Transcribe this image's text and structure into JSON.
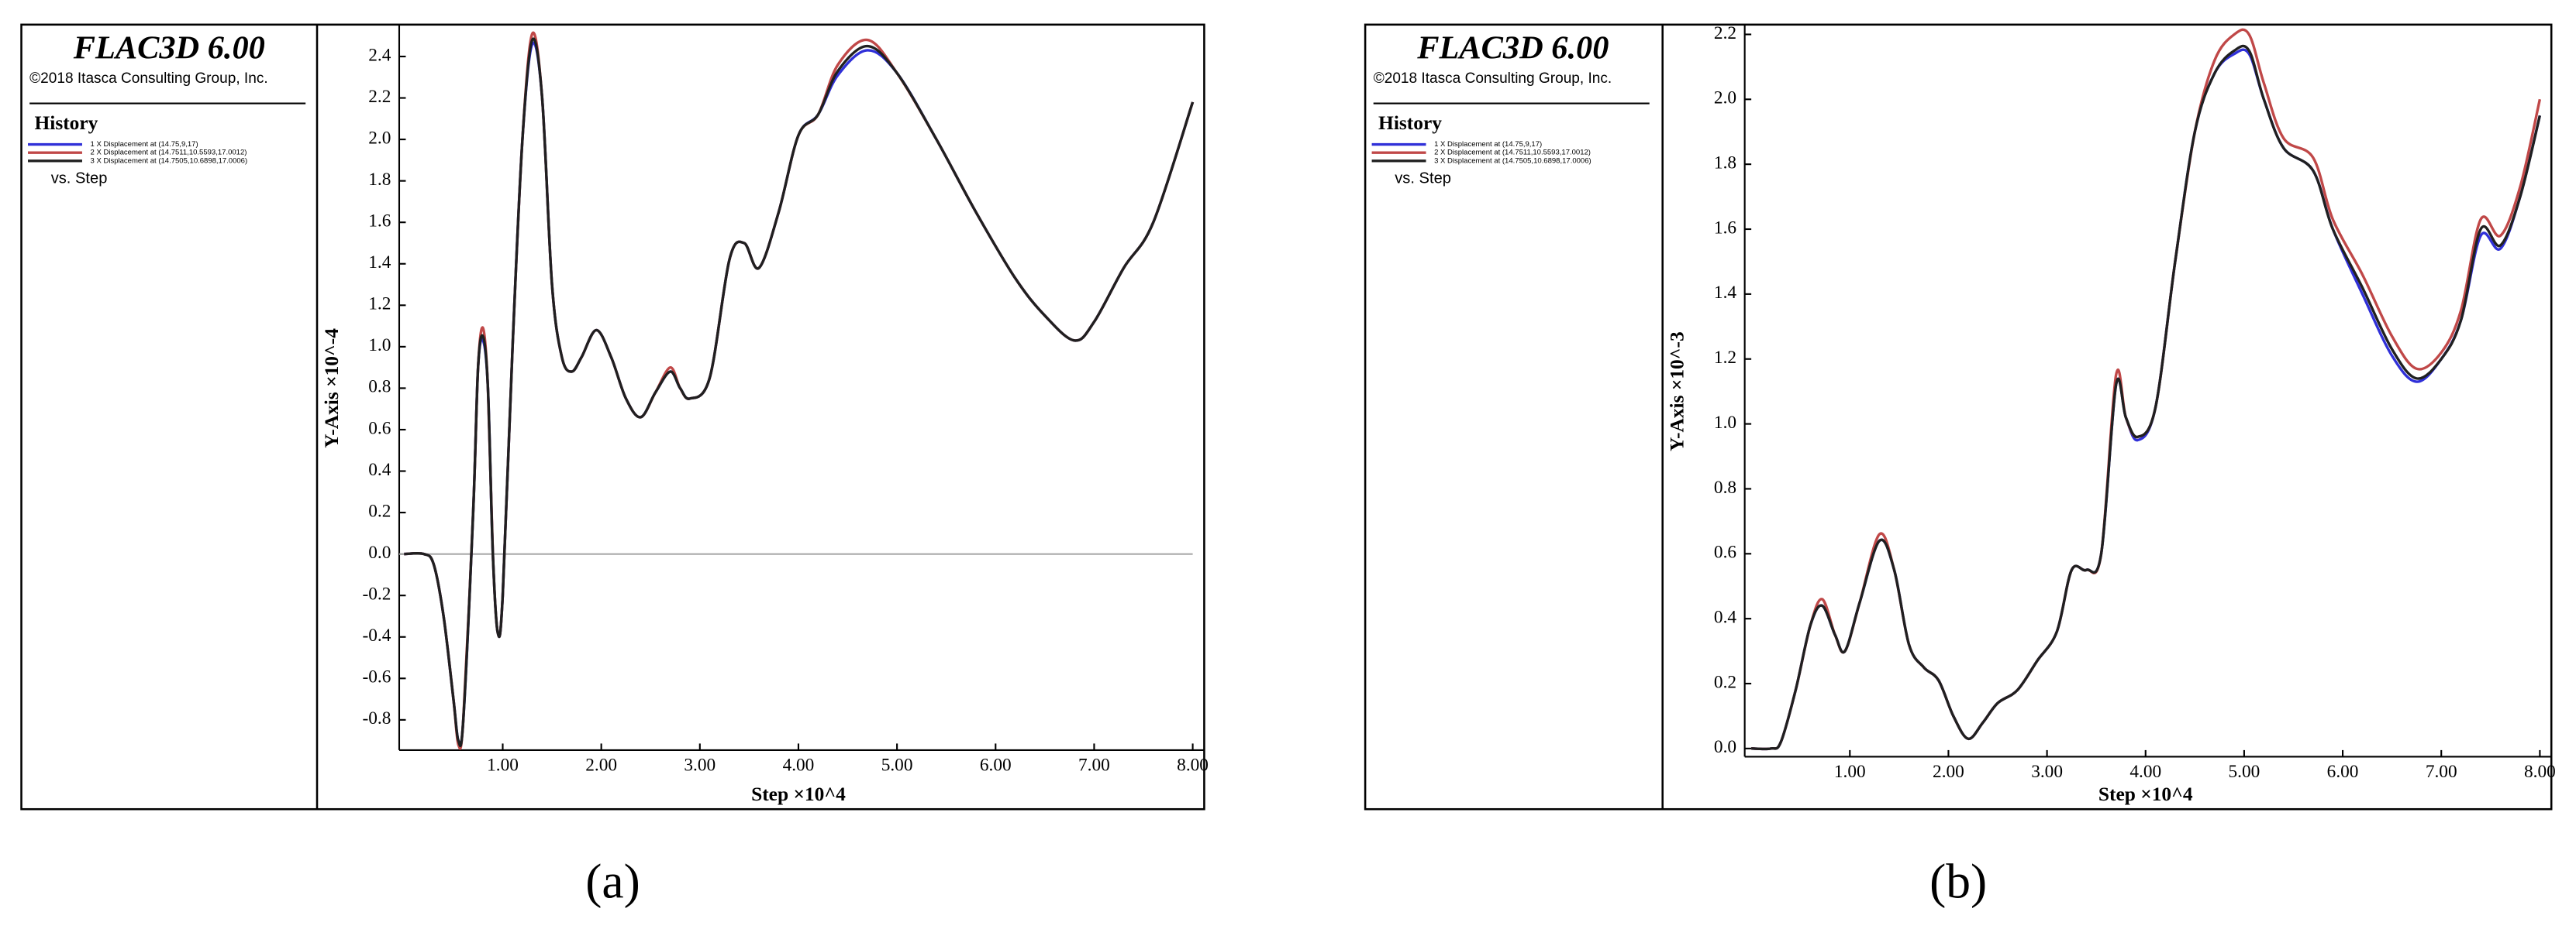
{
  "chart_data": [
    {
      "type": "line",
      "software": "FLAC3D 6.00",
      "copyright": "©2018 Itasca Consulting Group, Inc.",
      "legend_title": "History",
      "x_caption": "vs. Step",
      "panel_label": "(a)",
      "xlabel": "Step ×10^4",
      "ylabel": "Y-Axis ×10^-4",
      "zero_line": true,
      "grid": false,
      "xlim": [
        0,
        8
      ],
      "ylim": [
        -0.93,
        2.53
      ],
      "xticks": [
        {
          "value": 1,
          "label": "1.00"
        },
        {
          "value": 2,
          "label": "2.00"
        },
        {
          "value": 3,
          "label": "3.00"
        },
        {
          "value": 4,
          "label": "4.00"
        },
        {
          "value": 5,
          "label": "5.00"
        },
        {
          "value": 6,
          "label": "6.00"
        },
        {
          "value": 7,
          "label": "7.00"
        },
        {
          "value": 8,
          "label": "8.00"
        }
      ],
      "yticks": [
        -0.8,
        -0.6,
        -0.4,
        -0.2,
        {
          "value": 0,
          "label": "0.0"
        },
        0.2,
        0.4,
        0.6,
        0.8,
        {
          "value": 1,
          "label": "1.0"
        },
        1.2,
        1.4,
        1.6,
        1.8,
        {
          "value": 2,
          "label": "2.0"
        },
        2.2,
        2.4
      ],
      "x": [
        0,
        0.2,
        0.3,
        0.4,
        0.5,
        0.55,
        0.6,
        0.7,
        0.75,
        0.8,
        0.85,
        0.9,
        0.95,
        1.0,
        1.1,
        1.2,
        1.3,
        1.4,
        1.5,
        1.6,
        1.7,
        1.8,
        1.95,
        2.1,
        2.25,
        2.4,
        2.55,
        2.7,
        2.8,
        2.9,
        3.1,
        3.3,
        3.45,
        3.6,
        3.8,
        4.0,
        4.2,
        4.4,
        4.7,
        5.0,
        5.4,
        5.8,
        6.2,
        6.5,
        6.8,
        7.0,
        7.3,
        7.6,
        8.0
      ],
      "series": [
        {
          "name": "1 X Displacement at (14.75,9,17)",
          "color": "#3030d8",
          "values": [
            0,
            0,
            -0.05,
            -0.3,
            -0.7,
            -0.9,
            -0.8,
            0.2,
            0.9,
            1.03,
            0.8,
            0,
            -0.38,
            -0.2,
            1.0,
            2.0,
            2.46,
            2.2,
            1.3,
            0.95,
            0.88,
            0.95,
            1.08,
            0.95,
            0.75,
            0.66,
            0.78,
            0.88,
            0.8,
            0.75,
            0.85,
            1.42,
            1.5,
            1.38,
            1.65,
            2.02,
            2.12,
            2.31,
            2.43,
            2.32,
            2.0,
            1.65,
            1.33,
            1.15,
            1.03,
            1.12,
            1.38,
            1.6,
            2.18
          ]
        },
        {
          "name": "2 X Displacement at (14.7511,10.5593,17.0012)",
          "color": "#c04848",
          "values": [
            0,
            0,
            -0.05,
            -0.3,
            -0.7,
            -0.92,
            -0.8,
            0.2,
            0.9,
            1.09,
            0.8,
            0,
            -0.38,
            -0.2,
            1.0,
            2.0,
            2.51,
            2.2,
            1.3,
            0.95,
            0.88,
            0.95,
            1.08,
            0.95,
            0.75,
            0.66,
            0.78,
            0.9,
            0.8,
            0.75,
            0.85,
            1.42,
            1.5,
            1.38,
            1.65,
            2.02,
            2.12,
            2.36,
            2.48,
            2.32,
            2.0,
            1.65,
            1.33,
            1.15,
            1.03,
            1.12,
            1.38,
            1.6,
            2.18
          ]
        },
        {
          "name": "3 X Displacement at (14.7505,10.6898,17.0006)",
          "color": "#202020",
          "values": [
            0,
            0,
            -0.05,
            -0.3,
            -0.7,
            -0.9,
            -0.8,
            0.2,
            0.9,
            1.05,
            0.8,
            0,
            -0.38,
            -0.2,
            1.0,
            2.0,
            2.48,
            2.2,
            1.3,
            0.95,
            0.88,
            0.95,
            1.08,
            0.95,
            0.75,
            0.66,
            0.78,
            0.88,
            0.8,
            0.75,
            0.85,
            1.42,
            1.5,
            1.38,
            1.65,
            2.02,
            2.12,
            2.33,
            2.45,
            2.32,
            2.0,
            1.65,
            1.33,
            1.15,
            1.03,
            1.12,
            1.38,
            1.6,
            2.18
          ]
        }
      ]
    },
    {
      "type": "line",
      "software": "FLAC3D 6.00",
      "copyright": "©2018 Itasca Consulting Group, Inc.",
      "legend_title": "History",
      "x_caption": "vs. Step",
      "panel_label": "(b)",
      "xlabel": "Step ×10^4",
      "ylabel": "Y-Axis ×10^-3",
      "zero_line": false,
      "grid": false,
      "xlim": [
        0,
        8
      ],
      "ylim": [
        -0.015,
        2.215
      ],
      "xticks": [
        {
          "value": 1,
          "label": "1.00"
        },
        {
          "value": 2,
          "label": "2.00"
        },
        {
          "value": 3,
          "label": "3.00"
        },
        {
          "value": 4,
          "label": "4.00"
        },
        {
          "value": 5,
          "label": "5.00"
        },
        {
          "value": 6,
          "label": "6.00"
        },
        {
          "value": 7,
          "label": "7.00"
        },
        {
          "value": 8,
          "label": "8.00"
        }
      ],
      "yticks": [
        {
          "value": 0,
          "label": "0.0"
        },
        0.2,
        0.4,
        0.6,
        0.8,
        {
          "value": 1,
          "label": "1.0"
        },
        1.2,
        1.4,
        1.6,
        1.8,
        {
          "value": 2,
          "label": "2.0"
        },
        2.2
      ],
      "x": [
        0,
        0.2,
        0.3,
        0.45,
        0.6,
        0.72,
        0.85,
        0.95,
        1.1,
        1.3,
        1.45,
        1.6,
        1.75,
        1.9,
        2.05,
        2.2,
        2.35,
        2.5,
        2.7,
        2.9,
        3.1,
        3.25,
        3.4,
        3.55,
        3.7,
        3.8,
        3.92,
        4.1,
        4.3,
        4.5,
        4.7,
        4.9,
        5.05,
        5.2,
        5.4,
        5.7,
        5.9,
        6.2,
        6.5,
        6.75,
        7.0,
        7.2,
        7.4,
        7.6,
        7.8,
        8.0
      ],
      "series": [
        {
          "name": "1 X Displacement at (14.75,9,17)",
          "color": "#3030d8",
          "values": [
            0,
            0,
            0.02,
            0.18,
            0.38,
            0.44,
            0.35,
            0.3,
            0.45,
            0.64,
            0.55,
            0.32,
            0.25,
            0.21,
            0.1,
            0.03,
            0.08,
            0.14,
            0.18,
            0.27,
            0.36,
            0.55,
            0.55,
            0.6,
            1.12,
            1.02,
            0.95,
            1.05,
            1.5,
            1.9,
            2.08,
            2.14,
            2.14,
            2.0,
            1.85,
            1.78,
            1.6,
            1.4,
            1.21,
            1.13,
            1.2,
            1.32,
            1.58,
            1.54,
            1.7,
            1.95
          ]
        },
        {
          "name": "2 X Displacement at (14.7511,10.5593,17.0012)",
          "color": "#c04848",
          "values": [
            0,
            0,
            0.02,
            0.18,
            0.38,
            0.46,
            0.35,
            0.3,
            0.45,
            0.66,
            0.55,
            0.32,
            0.25,
            0.21,
            0.1,
            0.03,
            0.08,
            0.14,
            0.18,
            0.27,
            0.36,
            0.55,
            0.55,
            0.6,
            1.15,
            1.02,
            0.96,
            1.05,
            1.5,
            1.9,
            2.12,
            2.2,
            2.2,
            2.05,
            1.88,
            1.82,
            1.63,
            1.46,
            1.27,
            1.17,
            1.22,
            1.35,
            1.63,
            1.58,
            1.73,
            2.0
          ]
        },
        {
          "name": "3 X Displacement at (14.7505,10.6898,17.0006)",
          "color": "#202020",
          "values": [
            0,
            0,
            0.02,
            0.18,
            0.38,
            0.44,
            0.35,
            0.3,
            0.45,
            0.64,
            0.55,
            0.32,
            0.25,
            0.21,
            0.1,
            0.03,
            0.08,
            0.14,
            0.18,
            0.27,
            0.36,
            0.55,
            0.55,
            0.6,
            1.12,
            1.02,
            0.96,
            1.05,
            1.5,
            1.9,
            2.08,
            2.15,
            2.15,
            2.0,
            1.85,
            1.78,
            1.6,
            1.42,
            1.23,
            1.14,
            1.2,
            1.32,
            1.6,
            1.55,
            1.7,
            1.95
          ]
        }
      ]
    }
  ]
}
